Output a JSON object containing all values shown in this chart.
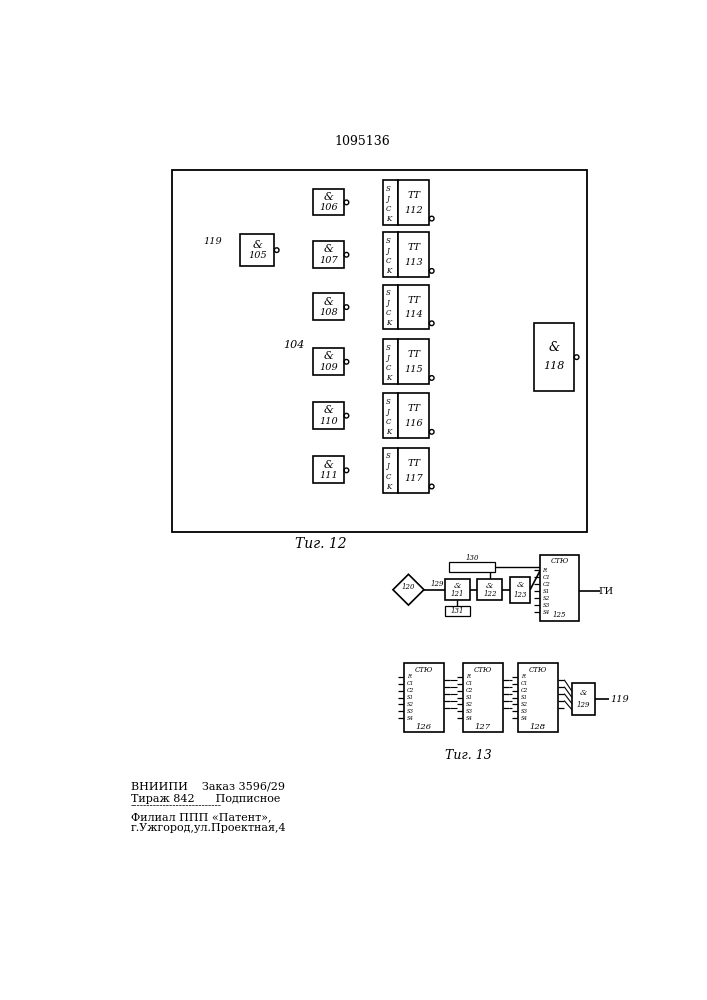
{
  "title": "1095136",
  "fig12_caption": "Τиг. 12",
  "fig13_caption": "Τиг. 13",
  "footer_line1": "ВНИИПИ    Заказ 3596/29",
  "footer_line2": "Тираж 842      Подписное",
  "footer_line4": "Филиал ППП «Патент»,",
  "footer_line5": "г.Ужгород,ул.Проектная,4",
  "bg_color": "#ffffff",
  "lc": "#000000",
  "and_nums": [
    106,
    107,
    108,
    109,
    110,
    111
  ],
  "tt_nums": [
    112,
    113,
    114,
    115,
    116,
    117
  ]
}
